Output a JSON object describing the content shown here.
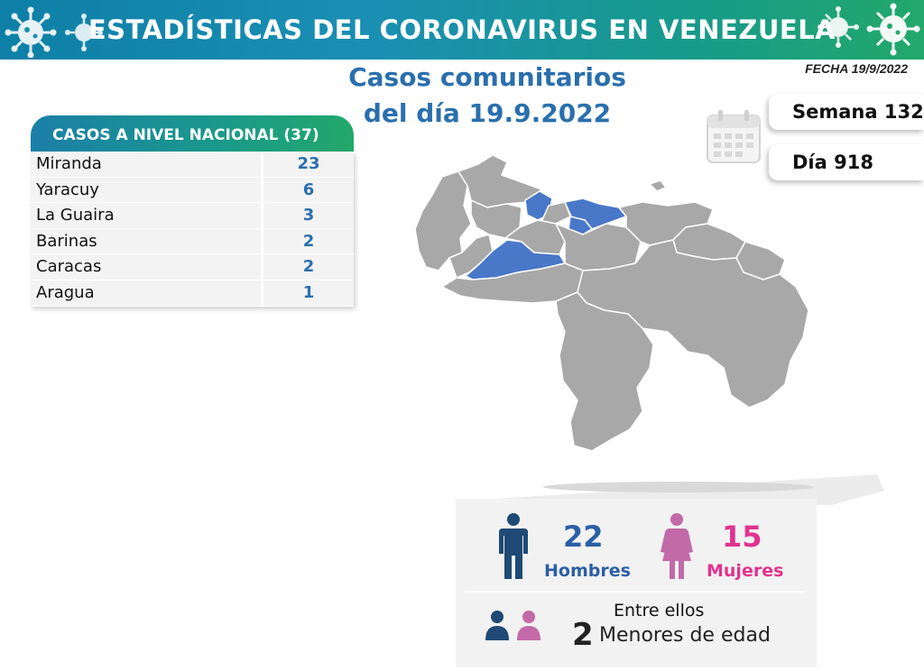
{
  "header": {
    "title": "ESTADÍSTICAS DEL CORONAVIRUS EN VENEZUELA"
  },
  "subtitle": {
    "line1": "Casos comunitarios",
    "line2": "del día 19.9.2022"
  },
  "fecha": "FECHA 19/9/2022",
  "info": {
    "semana": "Semana 132",
    "dia": "Día 918"
  },
  "national_table": {
    "header": "CASOS A NIVEL NACIONAL  (37)",
    "rows": [
      {
        "name": "Miranda",
        "value": "23"
      },
      {
        "name": "Yaracuy",
        "value": "6"
      },
      {
        "name": "La Guaira",
        "value": "3"
      },
      {
        "name": "Barinas",
        "value": "2"
      },
      {
        "name": "Caracas",
        "value": "2"
      },
      {
        "name": "Aragua",
        "value": "1"
      }
    ]
  },
  "gender": {
    "male_count": "22",
    "male_label": "Hombres",
    "female_count": "15",
    "female_label": "Mujeres",
    "entre_ellos": "Entre ellos",
    "minors_count": "2",
    "minors_label": "Menores de edad"
  },
  "colors": {
    "highlight_state": "#4a78c8",
    "other_state": "#a8a8a8",
    "male": "#1f4a75",
    "female": "#c26aa8",
    "title_blue": "#2a6fad",
    "female_text": "#e0338f"
  },
  "icons": [
    "virus-icon",
    "calendar-icon",
    "male-person-icon",
    "female-person-icon",
    "child-male-icon",
    "child-female-icon"
  ]
}
